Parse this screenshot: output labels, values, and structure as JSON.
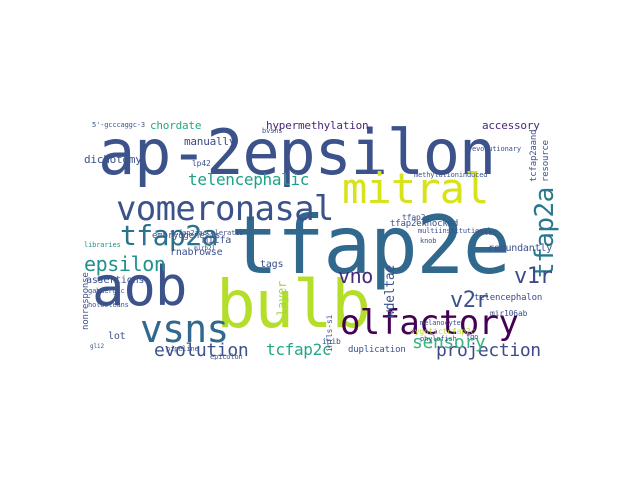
{
  "words": [
    {
      "text": "ap-2epsilon",
      "color": "#3b528b"
    },
    {
      "text": "tfap2e",
      "color": "#31688e"
    },
    {
      "text": "aob",
      "color": "#3b528b"
    },
    {
      "text": "bulb",
      "color": "#b5de2b"
    },
    {
      "text": "mitral",
      "color": "#d8e219"
    },
    {
      "text": "vomeronasal",
      "color": "#3b528b"
    },
    {
      "text": "olfactory",
      "color": "#440154"
    },
    {
      "text": "vsns",
      "color": "#31688e"
    },
    {
      "text": "tfap2a",
      "color": "#2c728e"
    },
    {
      "text": "tfap2a",
      "color": "#2a788e"
    },
    {
      "text": "epsilon",
      "color": "#21918c"
    },
    {
      "text": "evolution",
      "color": "#3b528b"
    },
    {
      "text": "projection",
      "color": "#3e4989"
    },
    {
      "text": "v2r",
      "color": "#3b528b"
    },
    {
      "text": "v1r",
      "color": "#3e4989"
    },
    {
      "text": "vno",
      "color": "#482878"
    },
    {
      "text": "sensory",
      "color": "#35b779"
    },
    {
      "text": "telencephalic",
      "color": "#1fa188"
    },
    {
      "text": "tcfap2c",
      "color": "#22a884"
    },
    {
      "text": "layer",
      "color": "#a0da39"
    },
    {
      "text": "wdeltae",
      "color": "#3b528b"
    },
    {
      "text": "chordate",
      "color": "#22a884"
    },
    {
      "text": "hypermethylation",
      "color": "#482878"
    },
    {
      "text": "accessory",
      "color": "#482878"
    },
    {
      "text": "manually",
      "color": "#3e4989"
    },
    {
      "text": "dichotomy",
      "color": "#3b528b"
    },
    {
      "text": "mitfa",
      "color": "#3b528b"
    },
    {
      "text": "tags",
      "color": "#3b528b"
    },
    {
      "text": "assertions",
      "color": "#3b528b"
    },
    {
      "text": "rnabrowse",
      "color": "#3b528b"
    },
    {
      "text": "lot",
      "color": "#3b528b"
    },
    {
      "text": "redundantly",
      "color": "#3b528b"
    },
    {
      "text": "tfap2eknocked",
      "color": "#3b528b"
    },
    {
      "text": "telencephalon",
      "color": "#3e4989"
    },
    {
      "text": "duplication",
      "color": "#3b528b"
    },
    {
      "text": "resource",
      "color": "#3b528b"
    },
    {
      "text": "tcfap2aand",
      "color": "#3b528b"
    },
    {
      "text": "nonresponse",
      "color": "#3b528b"
    },
    {
      "text": "embryogenesis",
      "color": "#3b528b"
    },
    {
      "text": "5'-gcccaggc-3",
      "color": "#3b528b"
    },
    {
      "text": "lp42",
      "color": "#3b528b"
    },
    {
      "text": "evolutionary",
      "color": "#3b528b"
    },
    {
      "text": "methylationinduced",
      "color": "#3b528b"
    },
    {
      "text": "inib",
      "color": "#3b528b"
    },
    {
      "text": "tfap2c",
      "color": "#3b528b"
    },
    {
      "text": "mir106ab",
      "color": "#3b528b"
    },
    {
      "text": "infls-si",
      "color": "#3b528b"
    },
    {
      "text": "holosteans",
      "color": "#3b528b"
    },
    {
      "text": "gabaergic",
      "color": "#3b528b"
    },
    {
      "text": "libraries",
      "color": "#21918c"
    },
    {
      "text": "zygotictcfap2c",
      "color": "#b5de2b"
    },
    {
      "text": "tcfap2aaccelerates",
      "color": "#3b528b"
    },
    {
      "text": "pipeline",
      "color": "#3b528b"
    },
    {
      "text": "epicolon",
      "color": "#3b528b"
    },
    {
      "text": "melanocyte",
      "color": "#3b528b"
    },
    {
      "text": "phylofish",
      "color": "#3b528b"
    },
    {
      "text": "fgo",
      "color": "#3b528b"
    },
    {
      "text": "multiinstitutional",
      "color": "#3b528b"
    },
    {
      "text": "knob",
      "color": "#3b528b"
    },
    {
      "text": "bvsns",
      "color": "#3b528b"
    },
    {
      "text": "ttlas",
      "color": "#3b528b"
    },
    {
      "text": "gli2",
      "color": "#3b528b"
    },
    {
      "text": "mirb21",
      "color": "#3b528b"
    }
  ]
}
